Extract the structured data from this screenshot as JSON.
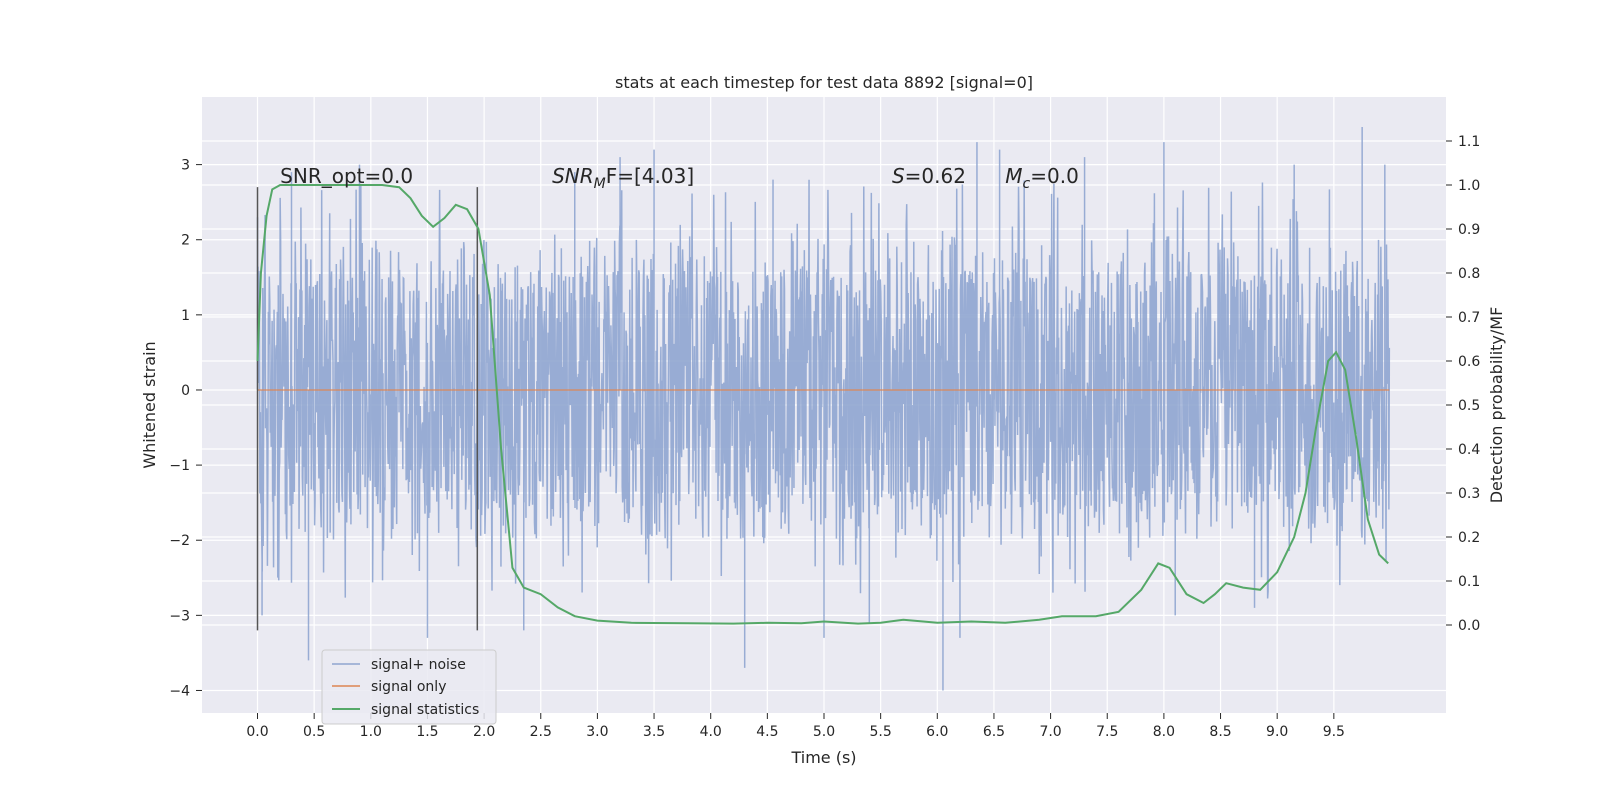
{
  "chart_data": {
    "type": "line",
    "title": "stats at each timestep for test data 8892 [signal=0]",
    "xlabel": "Time (s)",
    "ylabel": "Whitened strain",
    "y2label": "Detection probability/MF",
    "xlim": [
      -0.49,
      10.49
    ],
    "ylim": [
      -4.3,
      3.9
    ],
    "y2lim": [
      -0.2,
      1.2
    ],
    "xticks": [
      0.0,
      0.5,
      1.0,
      1.5,
      2.0,
      2.5,
      3.0,
      3.5,
      4.0,
      4.5,
      5.0,
      5.5,
      6.0,
      6.5,
      7.0,
      7.5,
      8.0,
      8.5,
      9.0,
      9.5
    ],
    "xtick_labels": [
      "0.0",
      "0.5",
      "1.0",
      "1.5",
      "2.0",
      "2.5",
      "3.0",
      "3.5",
      "4.0",
      "4.5",
      "5.0",
      "5.5",
      "6.0",
      "6.5",
      "7.0",
      "7.5",
      "8.0",
      "8.5",
      "9.0",
      "9.5"
    ],
    "yticks": [
      -4,
      -3,
      -2,
      -1,
      0,
      1,
      2,
      3
    ],
    "ytick_labels": [
      "−4",
      "−3",
      "−2",
      "−1",
      "0",
      "1",
      "2",
      "3"
    ],
    "y2ticks": [
      0.0,
      0.1,
      0.2,
      0.3,
      0.4,
      0.5,
      0.6,
      0.7,
      0.8,
      0.9,
      1.0,
      1.1
    ],
    "y2tick_labels": [
      "0.0",
      "0.1",
      "0.2",
      "0.3",
      "0.4",
      "0.5",
      "0.6",
      "0.7",
      "0.8",
      "0.9",
      "1.0",
      "1.1"
    ],
    "grid": true,
    "legend_position": "lower-left",
    "vlines": [
      {
        "x": 0.0,
        "ymin": -3.2,
        "ymax": 2.7
      },
      {
        "x": 1.94,
        "ymin": -3.2,
        "ymax": 2.7
      }
    ],
    "annotations": [
      {
        "text": "SNR_opt=0.0",
        "x": 0.2,
        "y": 2.7
      },
      {
        "text_main": "SNR",
        "text_sub": "M",
        "text_rest": "F=[4.03]",
        "x": 2.6,
        "y": 2.7
      },
      {
        "text_main": "S",
        "text_rest": "=0.62",
        "x": 5.6,
        "y": 2.7
      },
      {
        "text_main": "M",
        "text_sub": "c",
        "text_rest": "=0.0",
        "x": 6.6,
        "y": 2.7
      }
    ],
    "series": [
      {
        "name": "signal+ noise",
        "color": "#8fa5d0",
        "axis": "left",
        "x_range": [
          0.0,
          9.99
        ],
        "typical_range": [
          -1.6,
          1.6
        ],
        "spikes": [
          {
            "x": 0.0,
            "y": 2.3
          },
          {
            "x": 0.04,
            "y": -3.0
          },
          {
            "x": 0.3,
            "y": 2.9
          },
          {
            "x": 0.45,
            "y": -3.6
          },
          {
            "x": 0.9,
            "y": 3.0
          },
          {
            "x": 1.5,
            "y": -3.3
          },
          {
            "x": 2.35,
            "y": -3.2
          },
          {
            "x": 2.8,
            "y": 2.9
          },
          {
            "x": 3.2,
            "y": 3.1
          },
          {
            "x": 3.5,
            "y": 3.2
          },
          {
            "x": 4.3,
            "y": -3.7
          },
          {
            "x": 4.55,
            "y": 2.8
          },
          {
            "x": 5.0,
            "y": -3.3
          },
          {
            "x": 5.4,
            "y": -3.1
          },
          {
            "x": 6.05,
            "y": -4.0
          },
          {
            "x": 6.2,
            "y": -3.3
          },
          {
            "x": 6.35,
            "y": 3.3
          },
          {
            "x": 6.55,
            "y": 3.2
          },
          {
            "x": 7.3,
            "y": 3.1
          },
          {
            "x": 8.0,
            "y": 3.3
          },
          {
            "x": 8.1,
            "y": -3.0
          },
          {
            "x": 8.8,
            "y": -2.9
          },
          {
            "x": 9.15,
            "y": 3.0
          },
          {
            "x": 9.75,
            "y": 3.5
          },
          {
            "x": 9.95,
            "y": 3.0
          }
        ]
      },
      {
        "name": "signal only",
        "color": "#dd8452",
        "axis": "left",
        "x": [
          0.0,
          9.99
        ],
        "y": [
          0.0,
          0.0
        ]
      },
      {
        "name": "signal statistics",
        "color": "#55a868",
        "axis": "right",
        "x": [
          0.0,
          0.03,
          0.08,
          0.13,
          0.2,
          0.3,
          0.5,
          0.8,
          1.1,
          1.25,
          1.35,
          1.45,
          1.55,
          1.65,
          1.75,
          1.85,
          1.95,
          2.05,
          2.15,
          2.25,
          2.35,
          2.5,
          2.65,
          2.8,
          3.0,
          3.3,
          3.8,
          4.2,
          4.5,
          4.8,
          5.0,
          5.3,
          5.5,
          5.7,
          6.0,
          6.3,
          6.6,
          6.9,
          7.1,
          7.4,
          7.6,
          7.8,
          7.95,
          8.05,
          8.2,
          8.35,
          8.45,
          8.55,
          8.7,
          8.85,
          9.0,
          9.15,
          9.25,
          9.35,
          9.45,
          9.52,
          9.6,
          9.7,
          9.8,
          9.9,
          9.98
        ],
        "y": [
          0.6,
          0.8,
          0.93,
          0.99,
          1.0,
          1.0,
          1.0,
          1.0,
          1.0,
          0.995,
          0.97,
          0.93,
          0.905,
          0.925,
          0.955,
          0.945,
          0.9,
          0.75,
          0.4,
          0.13,
          0.085,
          0.07,
          0.04,
          0.02,
          0.01,
          0.005,
          0.004,
          0.003,
          0.005,
          0.004,
          0.008,
          0.003,
          0.005,
          0.012,
          0.005,
          0.008,
          0.005,
          0.012,
          0.02,
          0.02,
          0.03,
          0.08,
          0.14,
          0.13,
          0.07,
          0.05,
          0.07,
          0.095,
          0.085,
          0.08,
          0.12,
          0.2,
          0.3,
          0.46,
          0.6,
          0.62,
          0.58,
          0.42,
          0.24,
          0.16,
          0.14
        ]
      }
    ]
  }
}
